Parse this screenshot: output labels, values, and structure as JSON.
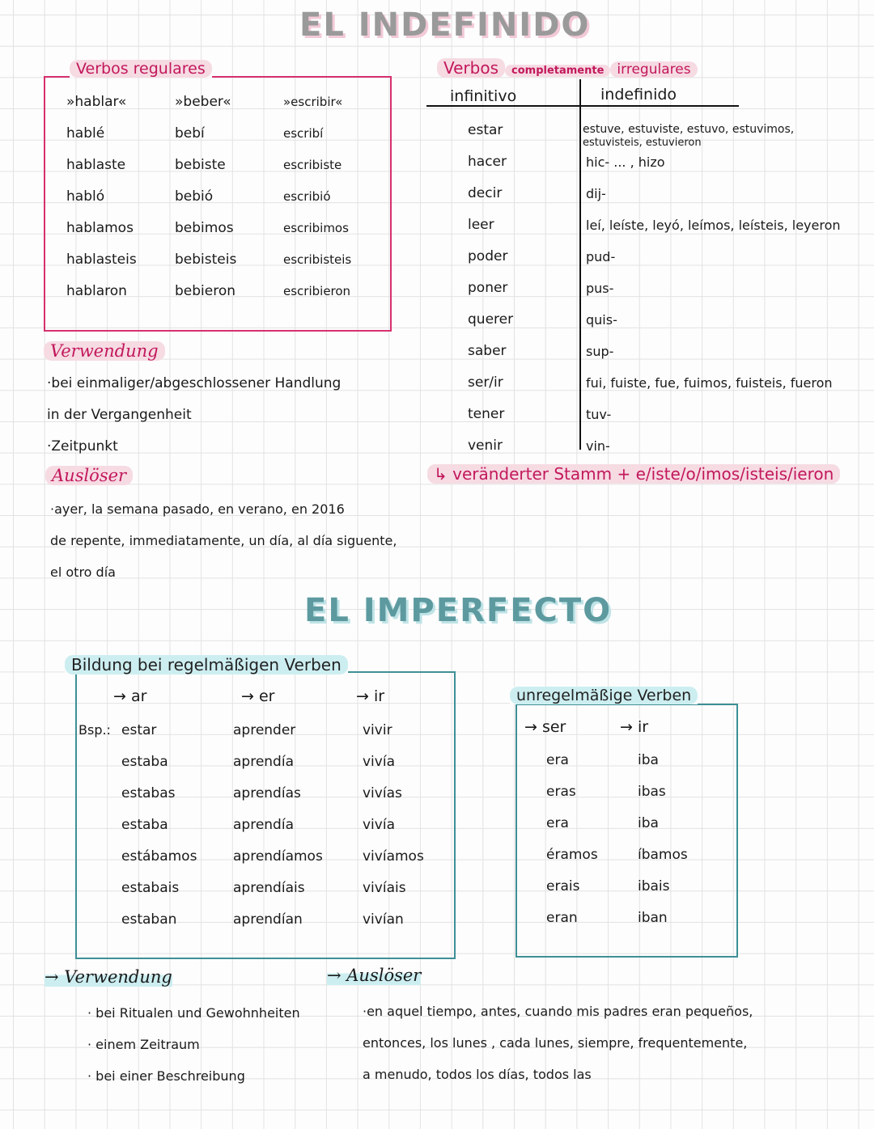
{
  "indefinido": {
    "title": "EL INDEFINIDO",
    "regulares": {
      "heading": "Verbos  regulares",
      "columns": [
        [
          "»hablar«",
          "hablé",
          "hablaste",
          "habló",
          "hablamos",
          "hablasteis",
          "hablaron"
        ],
        [
          "»beber«",
          "bebí",
          "bebiste",
          "bebió",
          "bebimos",
          "bebisteis",
          "bebieron"
        ],
        [
          "»escribir«",
          "escribí",
          "escribiste",
          "escribió",
          "escribimos",
          "escribisteis",
          "escribieron"
        ]
      ]
    },
    "irregulares": {
      "heading_main": "Verbos",
      "heading_mid": "completamente",
      "heading_end": "irregulares",
      "col_infinitivo": "infinitivo",
      "col_indefinido": "indefinido",
      "infinitives": [
        "estar",
        "hacer",
        "decir",
        "leer",
        "poder",
        "poner",
        "querer",
        "saber",
        "ser/ir",
        "tener",
        "venir"
      ],
      "estar_line1": "estuve, estuviste, estuvo, estuvimos,",
      "estar_line2": "estuvisteis, estuvieron",
      "forms": [
        "hic- ... , hizo",
        "dij-",
        "leí, leíste, leyó, leímos, leísteis, leyeron",
        "pud-",
        "pus-",
        "quis-",
        "sup-",
        "fui, fuiste, fue, fuimos, fuisteis, fueron",
        "tuv-",
        "vin-"
      ],
      "rule": "↳ veränderter  Stamm + e/iste/o/imos/isteis/ieron"
    },
    "verwendung": {
      "heading": "Verwendung",
      "items": [
        "·bei  einmaliger/abgeschlossener  Handlung",
        "in der  Vergangenheit",
        "·Zeitpunkt"
      ]
    },
    "ausloeser": {
      "heading": "Auslöser",
      "items": [
        "·ayer, la semana  pasado, en verano, en  2016",
        "de repente, immediatamente, un día, al día  siguente,",
        "el otro día"
      ]
    }
  },
  "imperfecto": {
    "title": "EL IMPERFECTO",
    "bildung": {
      "heading": "Bildung  bei  regelmäßigen  Verben",
      "headers": [
        "→ ar",
        "→ er",
        "→ ir"
      ],
      "example_label": "Bsp.:",
      "columns": [
        [
          "estar",
          "estaba",
          "estabas",
          "estaba",
          "estábamos",
          "estabais",
          "estaban"
        ],
        [
          "aprender",
          "aprendía",
          "aprendías",
          "aprendía",
          "aprendíamos",
          "aprendíais",
          "aprendían"
        ],
        [
          "vivir",
          "vivía",
          "vivías",
          "vivía",
          "vivíamos",
          "vivíais",
          "vivían"
        ]
      ]
    },
    "unregelmaessig": {
      "heading": "unregelmäßige  Verben",
      "headers": [
        "→ ser",
        "→ ir"
      ],
      "columns": [
        [
          "era",
          "eras",
          "era",
          "éramos",
          "erais",
          "eran"
        ],
        [
          "iba",
          "ibas",
          "iba",
          "íbamos",
          "ibais",
          "iban"
        ]
      ]
    },
    "verwendung": {
      "heading": "→ Verwendung",
      "items": [
        "· bei  Ritualen  und  Gewohnheiten",
        "· einem  Zeitraum",
        "· bei  einer  Beschreibung"
      ]
    },
    "ausloeser": {
      "heading": "→ Auslöser",
      "items": [
        "·en aquel  tiempo, antes, cuando  mis  padres  eran  pequeños,",
        "entonces, los lunes , cada lunes, siempre, frequentemente,",
        "a menudo, todos  los  días, todos  las"
      ]
    }
  },
  "colors": {
    "pink": "#c2185b",
    "teal": "#3e8f96"
  }
}
